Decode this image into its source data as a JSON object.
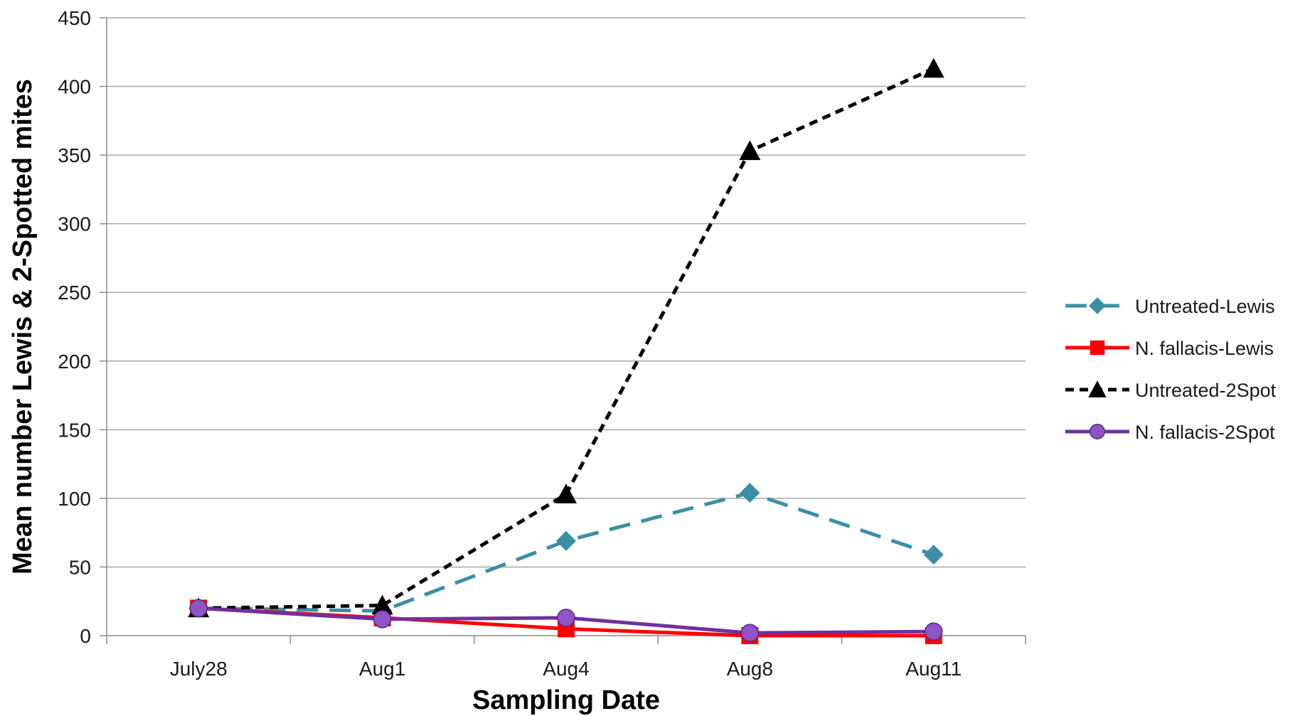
{
  "chart_data": {
    "type": "line",
    "xlabel": "Sampling Date",
    "ylabel": "Mean number Lewis & 2-Spotted mites",
    "categories": [
      "July28",
      "Aug1",
      "Aug4",
      "Aug8",
      "Aug11"
    ],
    "ylim": [
      0,
      450
    ],
    "yticks": [
      0,
      50,
      100,
      150,
      200,
      250,
      300,
      350,
      400,
      450
    ],
    "grid": "horizontal",
    "legend_position": "right",
    "series": [
      {
        "name": "Untreated-Lewis",
        "values": [
          20,
          18,
          69,
          104,
          59
        ],
        "color": "#3a8fa6",
        "marker": "diamond",
        "dash": "dashed"
      },
      {
        "name": "N. fallacis-Lewis",
        "values": [
          20,
          13,
          5,
          0,
          0
        ],
        "color": "#ff0000",
        "marker": "square",
        "dash": "solid"
      },
      {
        "name": "Untreated-2Spot",
        "values": [
          20,
          22,
          103,
          353,
          413
        ],
        "color": "#000000",
        "marker": "triangle",
        "dash": "dotted"
      },
      {
        "name": "N. fallacis-2Spot",
        "values": [
          20,
          12,
          13,
          2,
          3
        ],
        "color": "#7030a0",
        "marker": "circle",
        "dash": "solid"
      }
    ]
  }
}
